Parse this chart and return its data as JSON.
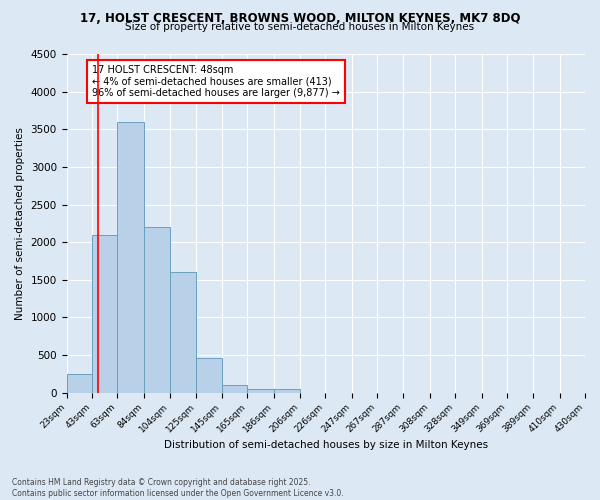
{
  "title_line1": "17, HOLST CRESCENT, BROWNS WOOD, MILTON KEYNES, MK7 8DQ",
  "title_line2": "Size of property relative to semi-detached houses in Milton Keynes",
  "xlabel": "Distribution of semi-detached houses by size in Milton Keynes",
  "ylabel": "Number of semi-detached properties",
  "footer_line1": "Contains HM Land Registry data © Crown copyright and database right 2025.",
  "footer_line2": "Contains public sector information licensed under the Open Government Licence v3.0.",
  "bin_labels": [
    "23sqm",
    "43sqm",
    "63sqm",
    "84sqm",
    "104sqm",
    "125sqm",
    "145sqm",
    "165sqm",
    "186sqm",
    "206sqm",
    "226sqm",
    "247sqm",
    "267sqm",
    "287sqm",
    "308sqm",
    "328sqm",
    "349sqm",
    "369sqm",
    "389sqm",
    "410sqm",
    "430sqm"
  ],
  "bin_edges": [
    23,
    43,
    63,
    84,
    104,
    125,
    145,
    165,
    186,
    206,
    226,
    247,
    267,
    287,
    308,
    328,
    349,
    369,
    389,
    410,
    430
  ],
  "bar_heights": [
    250,
    2100,
    3600,
    2200,
    1600,
    460,
    100,
    50,
    50,
    0,
    0,
    0,
    0,
    0,
    0,
    0,
    0,
    0,
    0,
    0
  ],
  "property_size": 48,
  "annotation_title": "17 HOLST CRESCENT: 48sqm",
  "annotation_line1": "← 4% of semi-detached houses are smaller (413)",
  "annotation_line2": "96% of semi-detached houses are larger (9,877) →",
  "bar_color": "#b8d0e8",
  "bar_edge_color": "#6a9fc0",
  "vline_color": "red",
  "annotation_box_color": "white",
  "annotation_box_edge_color": "red",
  "background_color": "#dce8f4",
  "grid_color": "white",
  "ylim": [
    0,
    4500
  ],
  "ytick_step": 500
}
